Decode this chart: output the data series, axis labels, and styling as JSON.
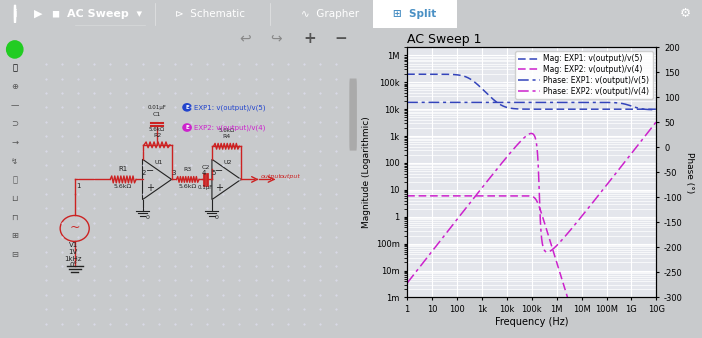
{
  "title": "AC Sweep 1",
  "xlabel": "Frequency (Hz)",
  "ylabel_left": "Magnitude (Logarithmic)",
  "ylabel_right": "Phase (°)",
  "ylim_mag": [
    0.001,
    2000000.0
  ],
  "ylim_phase": [
    -300,
    200
  ],
  "bg_color": "#e4e6ec",
  "grid_color": "#ffffff",
  "blue_color": "#3344bb",
  "magenta_color": "#cc22cc",
  "toolbar_color": "#4a90c4",
  "schematic_bg": "#f5f5f8",
  "legend_labels": [
    "Mag: EXP1: v(output)/v(5)",
    "Mag: EXP2: v(output)/v(4)",
    "Phase: EXP1: v(output)/v(5)",
    "Phase: EXP2: v(output)/v(4)"
  ],
  "xtick_labels": [
    "1",
    "10",
    "100",
    "1k",
    "10k",
    "100k",
    "1M",
    "10M",
    "100M",
    "1G",
    "10G"
  ],
  "ytick_mag_labels": [
    "1m",
    "10m",
    "100m",
    "1",
    "10",
    "100",
    "1k",
    "10k",
    "100k",
    "1M"
  ],
  "ytick_mag_vals": [
    0.001,
    0.01,
    0.1,
    1,
    10,
    100,
    1000,
    10000,
    100000,
    1000000
  ],
  "ytick_phase_vals": [
    200,
    150,
    100,
    50,
    0,
    -50,
    -100,
    -150,
    -200,
    -250,
    -300
  ],
  "wire_color": "#cc2222",
  "component_color": "#222222"
}
